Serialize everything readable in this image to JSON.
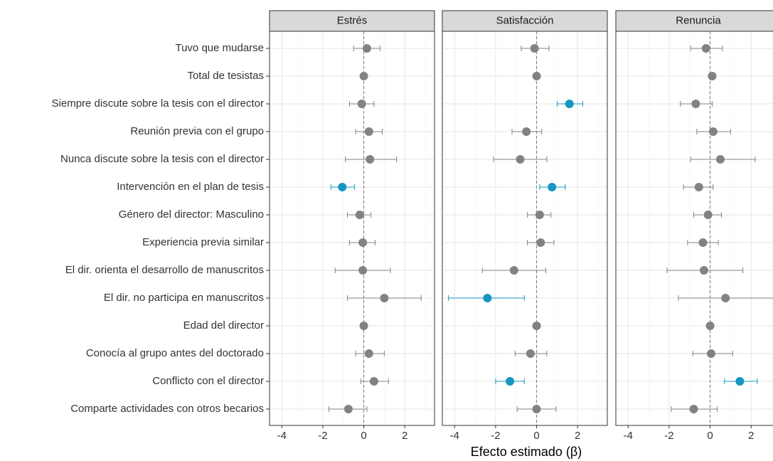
{
  "chart_data": {
    "type": "forest",
    "xlabel": "Efecto estimado (β)",
    "categories": [
      "Tuvo que mudarse",
      "Total de tesistas",
      "Siempre discute sobre la tesis con el director",
      "Reunión previa con el grupo",
      "Nunca discute sobre la tesis con el director",
      "Intervención en el plan de tesis",
      "Género del director: Masculino",
      "Experiencia previa similar",
      "El dir. orienta el desarrollo de manuscritos",
      "El dir. no participa en manuscritos",
      "Edad del director",
      "Conocía al grupo antes del doctorado",
      "Conflicto con el director",
      "Comparte actividades con otros becarios"
    ],
    "xlim": [
      -4.6,
      3.45
    ],
    "xticks": [
      -4,
      -2,
      0,
      2
    ],
    "minor_xticks": [
      -3,
      -1,
      1,
      3
    ],
    "xref": 0,
    "grid": true,
    "facets": [
      {
        "title": "Estrés",
        "estimate": [
          0.15,
          0.0,
          -0.1,
          0.25,
          0.3,
          -1.05,
          -0.2,
          -0.05,
          -0.05,
          1.0,
          0.0,
          0.25,
          0.5,
          -0.75
        ],
        "lower": [
          -0.5,
          -0.1,
          -0.7,
          -0.4,
          -0.9,
          -1.6,
          -0.8,
          -0.7,
          -1.4,
          -0.8,
          -0.05,
          -0.4,
          -0.15,
          -1.7
        ],
        "upper": [
          0.8,
          0.1,
          0.5,
          0.9,
          1.6,
          -0.45,
          0.35,
          0.55,
          1.3,
          2.8,
          0.05,
          1.0,
          1.2,
          0.15
        ],
        "colors": [
          "#808285",
          "#808285",
          "#808285",
          "#808285",
          "#808285",
          "#1696c0",
          "#808285",
          "#808285",
          "#808285",
          "#808285",
          "#808285",
          "#808285",
          "#808285",
          "#808285"
        ]
      },
      {
        "title": "Satisfacción",
        "estimate": [
          -0.1,
          0.0,
          1.6,
          -0.5,
          -0.8,
          0.75,
          0.15,
          0.2,
          -1.1,
          -2.4,
          0.0,
          -0.3,
          -1.3,
          0.0
        ],
        "lower": [
          -0.75,
          -0.1,
          1.0,
          -1.2,
          -2.1,
          0.15,
          -0.45,
          -0.45,
          -2.65,
          -4.3,
          -0.05,
          -1.05,
          -2.0,
          -0.95
        ],
        "upper": [
          0.6,
          0.1,
          2.25,
          0.25,
          0.5,
          1.4,
          0.7,
          0.85,
          0.45,
          -0.6,
          0.05,
          0.5,
          -0.6,
          0.95
        ],
        "colors": [
          "#808285",
          "#808285",
          "#1696c0",
          "#808285",
          "#808285",
          "#1696c0",
          "#808285",
          "#808285",
          "#808285",
          "#1696c0",
          "#808285",
          "#808285",
          "#1696c0",
          "#808285"
        ]
      },
      {
        "title": "Renuncia",
        "estimate": [
          -0.2,
          0.1,
          -0.7,
          0.15,
          0.5,
          -0.55,
          -0.1,
          -0.35,
          -0.3,
          0.75,
          0.0,
          0.05,
          1.45,
          -0.8
        ],
        "lower": [
          -0.95,
          0.0,
          -1.45,
          -0.65,
          -0.95,
          -1.3,
          -0.8,
          -1.1,
          -2.1,
          -1.55,
          -0.05,
          -0.85,
          0.7,
          -1.9
        ],
        "upper": [
          0.6,
          0.25,
          0.1,
          1.0,
          2.2,
          0.15,
          0.55,
          0.4,
          1.6,
          3.1,
          0.05,
          1.1,
          2.3,
          0.35
        ],
        "colors": [
          "#808285",
          "#808285",
          "#808285",
          "#808285",
          "#808285",
          "#808285",
          "#808285",
          "#808285",
          "#808285",
          "#808285",
          "#808285",
          "#808285",
          "#1696c0",
          "#808285"
        ]
      }
    ]
  }
}
